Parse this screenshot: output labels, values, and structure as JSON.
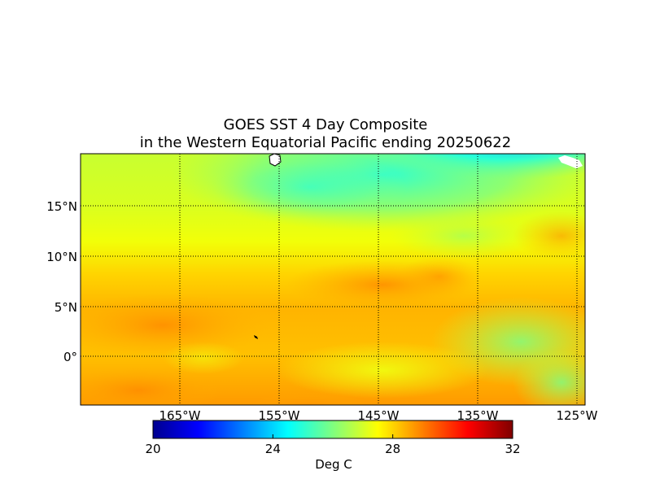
{
  "title": {
    "line1": "GOES SST 4 Day Composite",
    "line2": "in the Western Equatorial Pacific ending 20250622"
  },
  "map": {
    "lat_labels": [
      "15°N",
      "10°N",
      "5°N",
      "0°"
    ],
    "lon_labels": [
      "165°W",
      "155°W",
      "145°W",
      "135°W",
      "125°W"
    ],
    "gridlines": "dotted"
  },
  "colorbar": {
    "ticks": [
      "20",
      "24",
      "28",
      "32"
    ],
    "label": "Deg C",
    "range": [
      20,
      32
    ],
    "colormap": "jet"
  },
  "colors": {
    "cold": "#00008f",
    "cool": "#00ffff",
    "mid": "#ffff00",
    "warm": "#ff8000",
    "hot": "#800000",
    "land": "#ffffff"
  }
}
